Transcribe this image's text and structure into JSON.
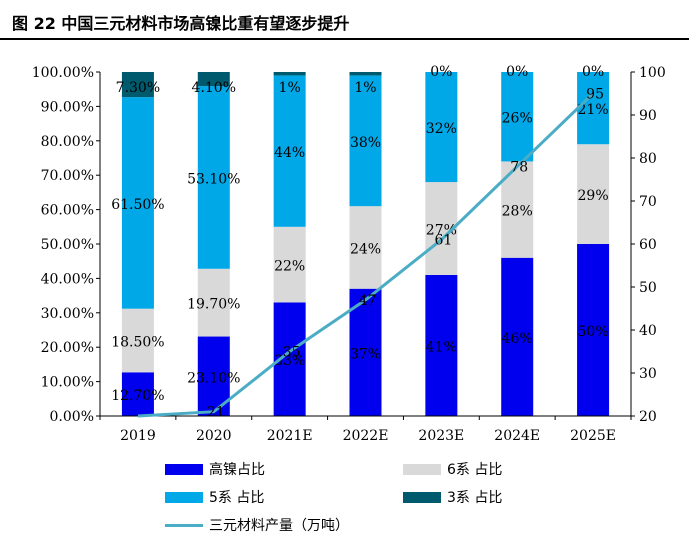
{
  "figure_title": "图 22 中国三元材料市场高镍比重有望逐步提升",
  "colors": {
    "high_nickel": "#0000ee",
    "six_series": "#d9d9d9",
    "five_series": "#00a8e8",
    "three_series": "#005a6e",
    "line": "#4bacc6"
  },
  "chart_data": {
    "type": "bar",
    "stacked": true,
    "categories": [
      "2019",
      "2020",
      "2021E",
      "2022E",
      "2023E",
      "2024E",
      "2025E"
    ],
    "y_left_ticks": [
      "0.00%",
      "10.00%",
      "20.00%",
      "30.00%",
      "40.00%",
      "50.00%",
      "60.00%",
      "70.00%",
      "80.00%",
      "90.00%",
      "100.00%"
    ],
    "y_right_ticks": [
      "20",
      "30",
      "40",
      "50",
      "60",
      "70",
      "80",
      "90",
      "100"
    ],
    "ylim_left": [
      0,
      100
    ],
    "ylim_right": [
      20,
      100
    ],
    "series": [
      {
        "name": "高镍占比",
        "values": [
          12.7,
          23.1,
          33,
          37,
          41,
          46,
          50
        ],
        "labels": [
          "12.70%",
          "23.10%",
          "33%",
          "37%",
          "41%",
          "46%",
          "50%"
        ]
      },
      {
        "name": "6系 占比",
        "values": [
          18.5,
          19.7,
          22,
          24,
          27,
          28,
          29
        ],
        "labels": [
          "18.50%",
          "19.70%",
          "22%",
          "24%",
          "27%",
          "28%",
          "29%"
        ]
      },
      {
        "name": "5系 占比",
        "values": [
          61.5,
          53.1,
          44,
          38,
          32,
          26,
          21
        ],
        "labels": [
          "61.50%",
          "53.10%",
          "44%",
          "38%",
          "32%",
          "26%",
          "21%"
        ]
      },
      {
        "name": "3系 占比",
        "values": [
          7.3,
          4.1,
          1,
          1,
          0,
          0,
          0
        ],
        "labels": [
          "7.30%",
          "4.10%",
          "1%",
          "1%",
          "0%",
          "0%",
          "0%"
        ]
      }
    ],
    "line_series": {
      "name": "三元材料产量（万吨）",
      "axis": "right",
      "values": [
        20,
        21,
        35,
        47,
        61,
        78,
        95
      ],
      "labels": [
        "",
        "21",
        "35",
        "47",
        "61",
        "78",
        "95"
      ]
    },
    "legend_position": "bottom"
  }
}
